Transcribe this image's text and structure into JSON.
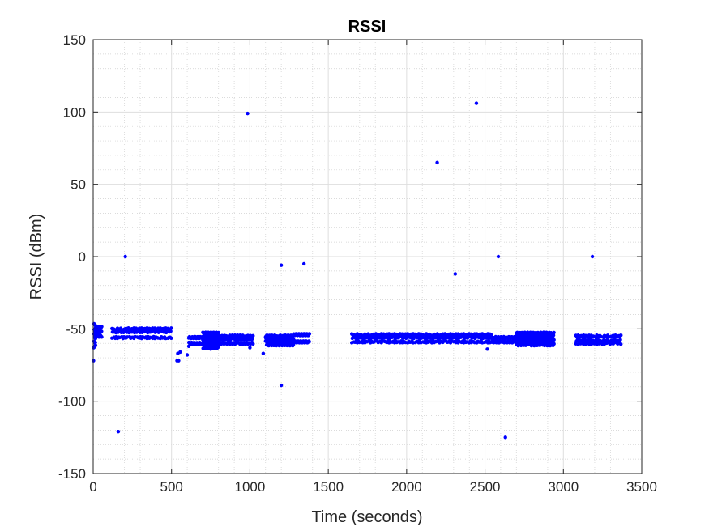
{
  "chart_data": {
    "type": "scatter",
    "title": "RSSI",
    "xlabel": "Time (seconds)",
    "ylabel": "RSSI (dBm)",
    "xlim": [
      0,
      3500
    ],
    "ylim": [
      -150,
      150
    ],
    "xticks": [
      0,
      500,
      1000,
      1500,
      2000,
      2500,
      3000,
      3500
    ],
    "yticks": [
      -150,
      -100,
      -50,
      0,
      50,
      100,
      150
    ],
    "grid": true,
    "minor_grid": true,
    "marker_color": "#0000ff",
    "bands": [
      {
        "x_start": 5,
        "x_end": 15,
        "y_levels": [
          -47,
          -50,
          -53,
          -56,
          -59,
          -62
        ]
      },
      {
        "x_start": 15,
        "x_end": 55,
        "y_levels": [
          -49,
          -52,
          -55
        ]
      },
      {
        "x_start": 120,
        "x_end": 500,
        "y_levels": [
          -50,
          -52,
          -56
        ]
      },
      {
        "x_start": 610,
        "x_end": 690,
        "y_levels": [
          -56,
          -60
        ]
      },
      {
        "x_start": 700,
        "x_end": 800,
        "y_levels": [
          -53,
          -55,
          -57,
          -59,
          -61,
          -63
        ]
      },
      {
        "x_start": 800,
        "x_end": 1020,
        "y_levels": [
          -55,
          -57,
          -60
        ]
      },
      {
        "x_start": 1100,
        "x_end": 1280,
        "y_levels": [
          -55,
          -57,
          -59,
          -61
        ]
      },
      {
        "x_start": 1280,
        "x_end": 1380,
        "y_levels": [
          -54,
          -59
        ]
      },
      {
        "x_start": 1650,
        "x_end": 2540,
        "y_levels": [
          -54,
          -56,
          -59
        ]
      },
      {
        "x_start": 2540,
        "x_end": 2700,
        "y_levels": [
          -56,
          -59
        ]
      },
      {
        "x_start": 2700,
        "x_end": 2940,
        "y_levels": [
          -53,
          -55,
          -57,
          -59,
          -61
        ]
      },
      {
        "x_start": 3080,
        "x_end": 3370,
        "y_levels": [
          -55,
          -58,
          -60
        ]
      }
    ],
    "points": [
      {
        "x": 2,
        "y": -72
      },
      {
        "x": 3,
        "y": -63
      },
      {
        "x": 160,
        "y": -121
      },
      {
        "x": 205,
        "y": 0
      },
      {
        "x": 535,
        "y": -72
      },
      {
        "x": 545,
        "y": -72
      },
      {
        "x": 540,
        "y": -67
      },
      {
        "x": 555,
        "y": -66
      },
      {
        "x": 600,
        "y": -68
      },
      {
        "x": 610,
        "y": -62
      },
      {
        "x": 750,
        "y": -64
      },
      {
        "x": 985,
        "y": 99
      },
      {
        "x": 1000,
        "y": -63
      },
      {
        "x": 1085,
        "y": -67
      },
      {
        "x": 1200,
        "y": -6
      },
      {
        "x": 1200,
        "y": -89
      },
      {
        "x": 1345,
        "y": -5
      },
      {
        "x": 2195,
        "y": 65
      },
      {
        "x": 2310,
        "y": -12
      },
      {
        "x": 2445,
        "y": 106
      },
      {
        "x": 2515,
        "y": -64
      },
      {
        "x": 2585,
        "y": 0
      },
      {
        "x": 2630,
        "y": -125
      },
      {
        "x": 3185,
        "y": 0
      }
    ]
  }
}
